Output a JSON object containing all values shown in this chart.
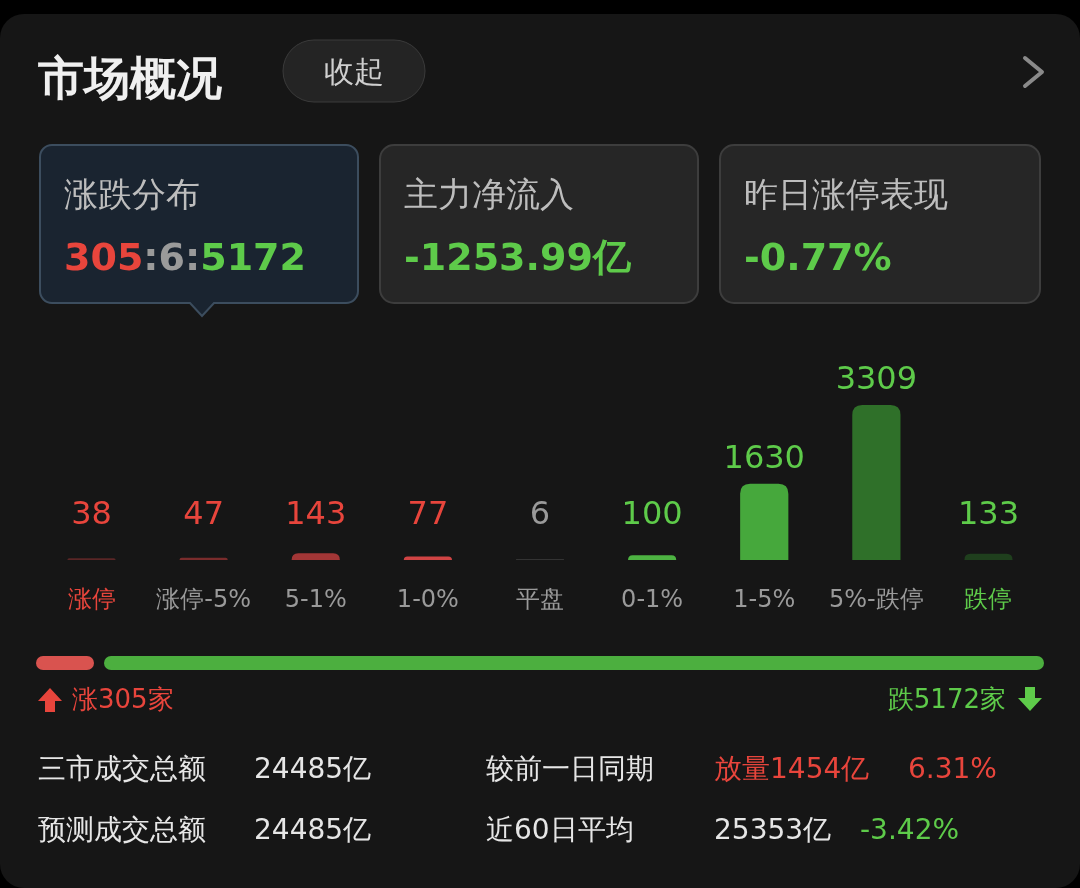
{
  "chart_data": [
    {
      "type": "other",
      "title": "市场概况",
      "annotations": [
        "收起",
        "涨跌分布",
        "305:6:5172",
        "主力净流入",
        "-1253.99亿",
        "昨日涨停表现",
        "-0.77%",
        "三市成交总额",
        "24485亿",
        "较前一日同期",
        "放量1454亿",
        "6.31%",
        "预测成交总额",
        "24485亿",
        "近60日平均",
        "25353亿",
        "-3.42%",
        "涨305家",
        "跌5172家"
      ]
    },
    {
      "type": "bar",
      "categories": [
        "涨停",
        "涨停-5%",
        "5-1%",
        "1-0%",
        "平盘",
        "0-1%",
        "1-5%",
        "5%-跌停",
        "跌停"
      ],
      "values": [
        38,
        47,
        143,
        77,
        6,
        100,
        1630,
        3309,
        133
      ],
      "colors": [
        "#5a2626",
        "#7a2c2c",
        "#a23636",
        "#d04444",
        "#8c8c8c",
        "#4db342",
        "#46a83c",
        "#2f7029",
        "#1f3f1d"
      ],
      "data_labels": true
    }
  ]
}
